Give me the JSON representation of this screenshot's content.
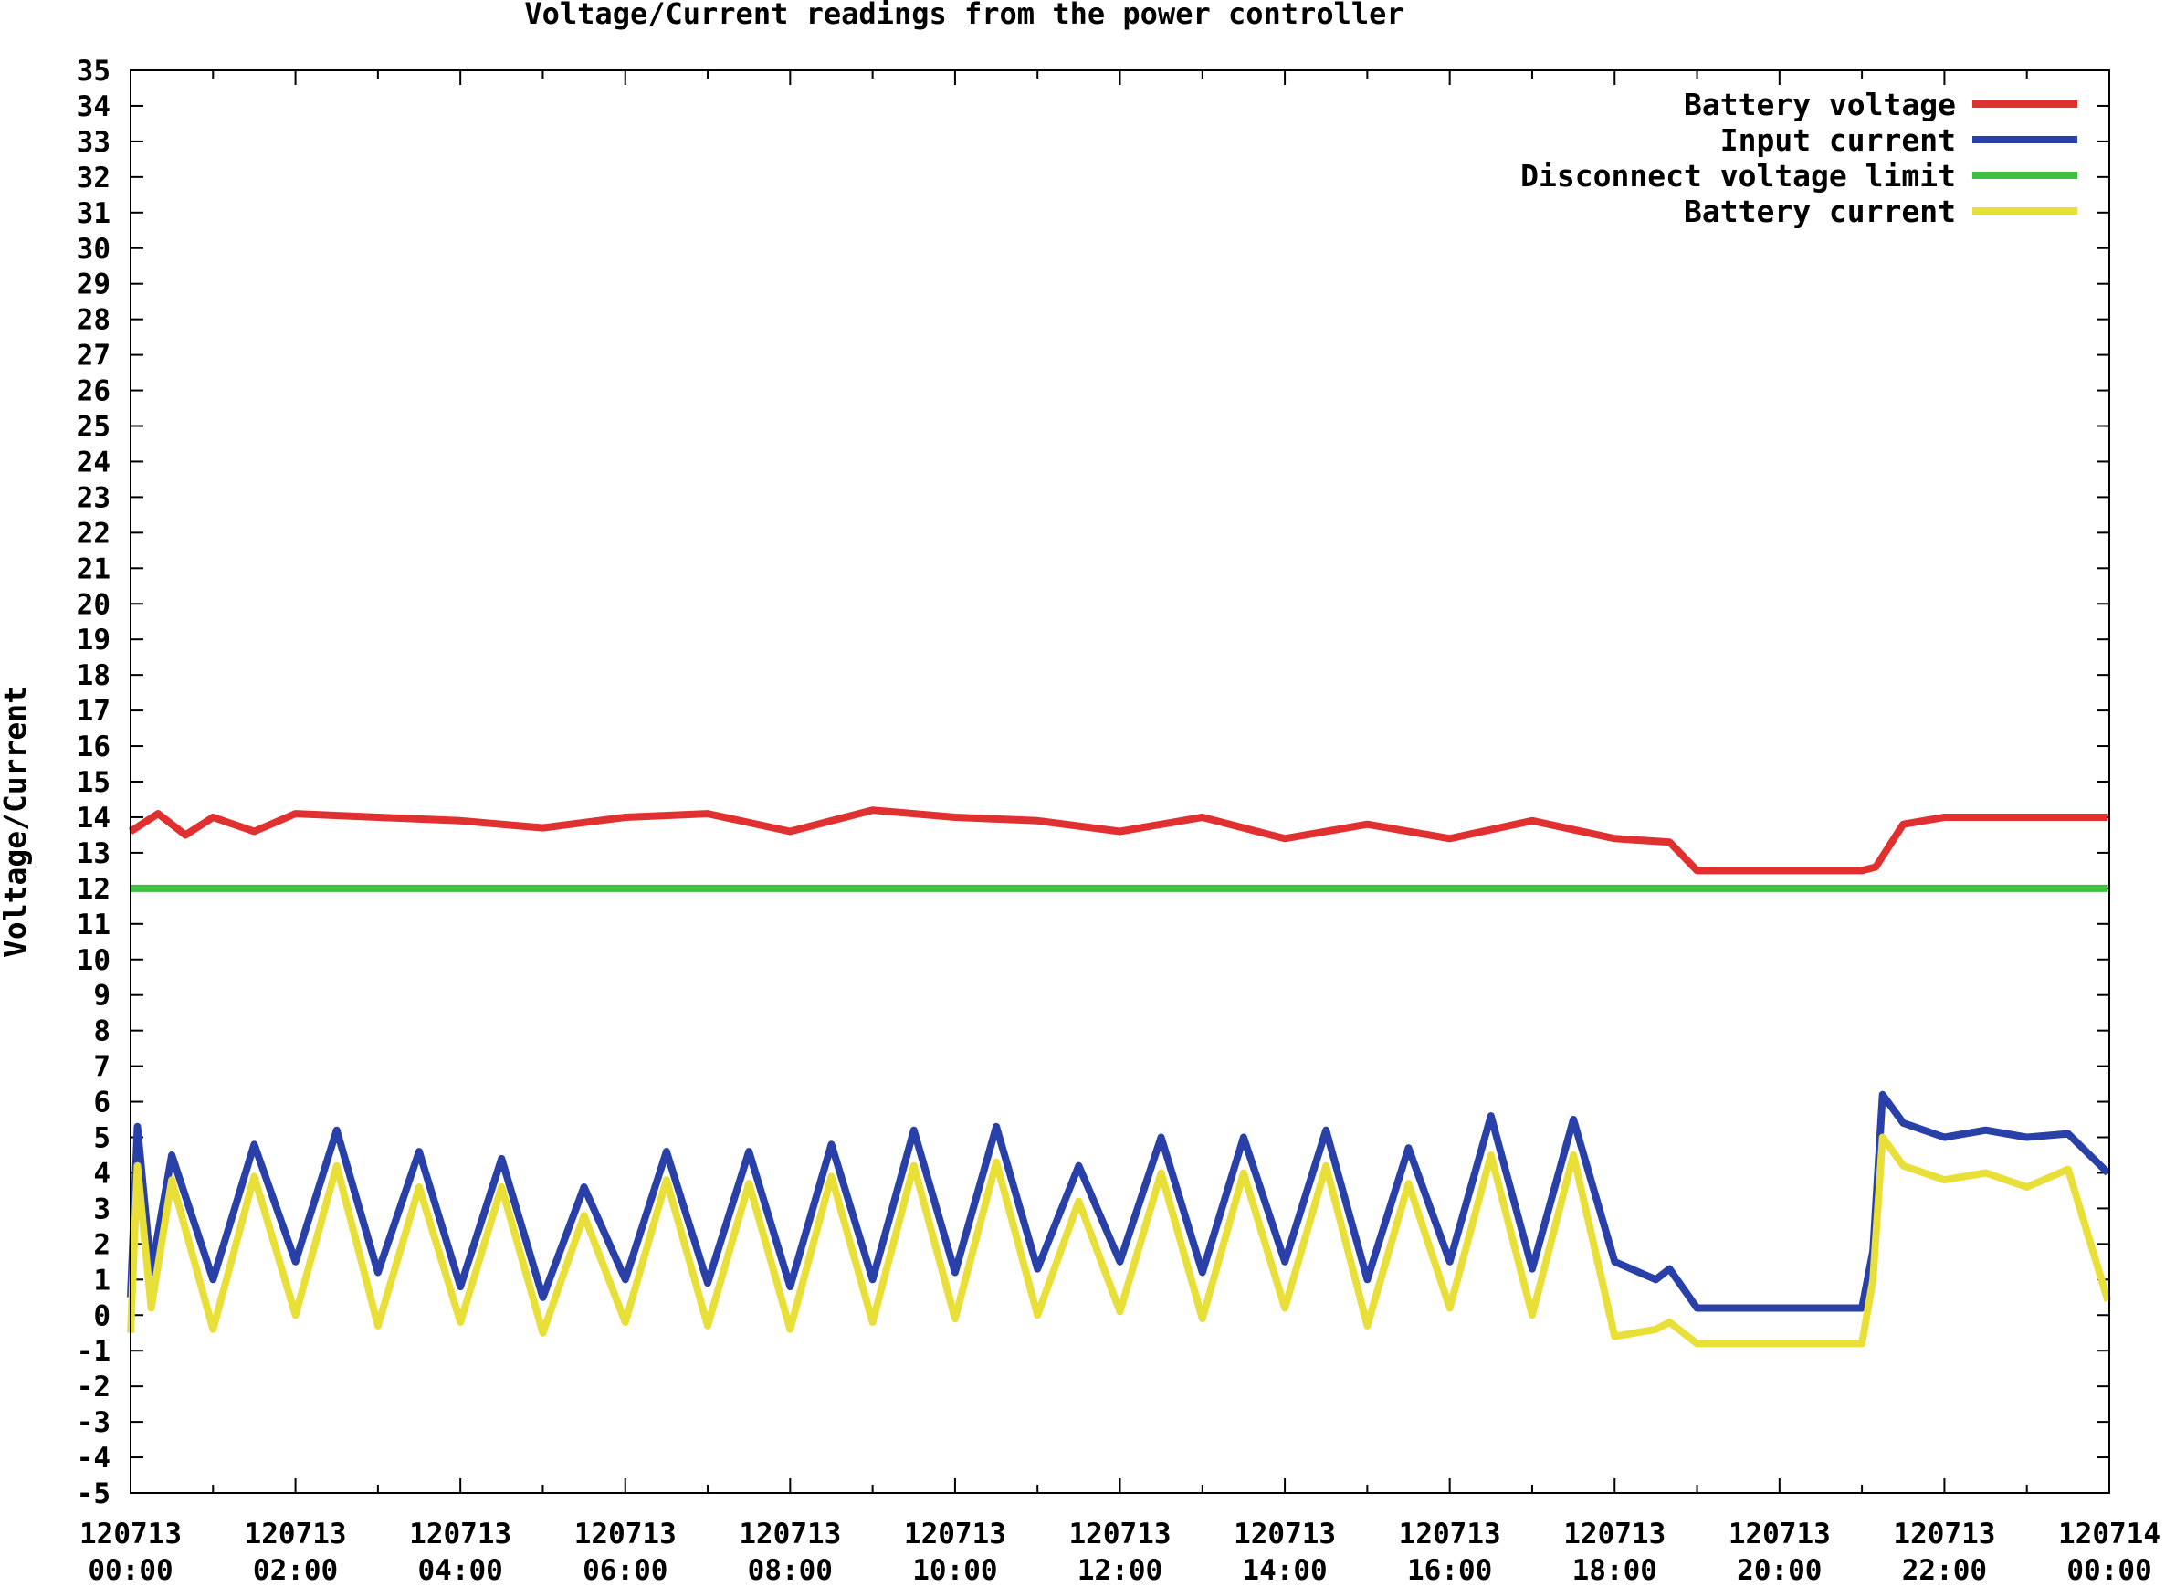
{
  "chart_data": {
    "type": "line",
    "title": "Voltage/Current readings from the power controller",
    "xlabel": "",
    "ylabel": "Voltage/Current",
    "ylim": [
      -5,
      35
    ],
    "yticks": [
      -5,
      -4,
      -3,
      -2,
      -1,
      0,
      1,
      2,
      3,
      4,
      5,
      6,
      7,
      8,
      9,
      10,
      11,
      12,
      13,
      14,
      15,
      16,
      17,
      18,
      19,
      20,
      21,
      22,
      23,
      24,
      25,
      26,
      27,
      28,
      29,
      30,
      31,
      32,
      33,
      34,
      35
    ],
    "xlim": [
      "120713 00:00",
      "120714 00:00"
    ],
    "xticks": [
      {
        "date": "120713",
        "time": "00:00"
      },
      {
        "date": "120713",
        "time": "02:00"
      },
      {
        "date": "120713",
        "time": "04:00"
      },
      {
        "date": "120713",
        "time": "06:00"
      },
      {
        "date": "120713",
        "time": "08:00"
      },
      {
        "date": "120713",
        "time": "10:00"
      },
      {
        "date": "120713",
        "time": "12:00"
      },
      {
        "date": "120713",
        "time": "14:00"
      },
      {
        "date": "120713",
        "time": "16:00"
      },
      {
        "date": "120713",
        "time": "18:00"
      },
      {
        "date": "120713",
        "time": "20:00"
      },
      {
        "date": "120713",
        "time": "22:00"
      },
      {
        "date": "120714",
        "time": "00:00"
      }
    ],
    "grid": false,
    "legend_position": "top-right",
    "series": [
      {
        "name": "Battery voltage",
        "color": "#e03030",
        "x": [
          "00:00",
          "00:20",
          "00:40",
          "01:00",
          "01:30",
          "02:00",
          "03:00",
          "04:00",
          "05:00",
          "06:00",
          "07:00",
          "08:00",
          "09:00",
          "10:00",
          "11:00",
          "12:00",
          "13:00",
          "14:00",
          "15:00",
          "16:00",
          "17:00",
          "18:00",
          "18:40",
          "19:00",
          "20:00",
          "21:00",
          "21:10",
          "21:30",
          "22:00",
          "23:00",
          "23:59"
        ],
        "y": [
          13.6,
          14.1,
          13.5,
          14.0,
          13.6,
          14.1,
          14.0,
          13.9,
          13.7,
          14.0,
          14.1,
          13.6,
          14.2,
          14.0,
          13.9,
          13.6,
          14.0,
          13.4,
          13.8,
          13.4,
          13.9,
          13.4,
          13.3,
          12.5,
          12.5,
          12.5,
          12.6,
          13.8,
          14.0,
          14.0,
          14.0
        ]
      },
      {
        "name": "Input current",
        "color": "#2840a8",
        "x": [
          "00:00",
          "00:05",
          "00:15",
          "00:30",
          "01:00",
          "01:30",
          "02:00",
          "02:30",
          "03:00",
          "03:30",
          "04:00",
          "04:30",
          "05:00",
          "05:30",
          "06:00",
          "06:30",
          "07:00",
          "07:30",
          "08:00",
          "08:30",
          "09:00",
          "09:30",
          "10:00",
          "10:30",
          "11:00",
          "11:30",
          "12:00",
          "12:30",
          "13:00",
          "13:30",
          "14:00",
          "14:30",
          "15:00",
          "15:30",
          "16:00",
          "16:30",
          "17:00",
          "17:30",
          "18:00",
          "18:30",
          "18:40",
          "19:00",
          "20:00",
          "21:00",
          "21:08",
          "21:15",
          "21:30",
          "22:00",
          "22:30",
          "23:00",
          "23:30",
          "23:59"
        ],
        "y": [
          0.5,
          5.3,
          1.2,
          4.5,
          1.0,
          4.8,
          1.5,
          5.2,
          1.2,
          4.6,
          0.8,
          4.4,
          0.5,
          3.6,
          1.0,
          4.6,
          0.9,
          4.6,
          0.8,
          4.8,
          1.0,
          5.2,
          1.2,
          5.3,
          1.3,
          4.2,
          1.5,
          5.0,
          1.2,
          5.0,
          1.5,
          5.2,
          1.0,
          4.7,
          1.5,
          5.6,
          1.3,
          5.5,
          1.5,
          1.0,
          1.3,
          0.2,
          0.2,
          0.2,
          1.8,
          6.2,
          5.4,
          5.0,
          5.2,
          5.0,
          5.1,
          4.0
        ]
      },
      {
        "name": "Disconnect voltage limit",
        "color": "#40c040",
        "x": [
          "00:00",
          "23:59"
        ],
        "y": [
          12,
          12
        ]
      },
      {
        "name": "Battery current",
        "color": "#e8e038",
        "x": [
          "00:00",
          "00:05",
          "00:15",
          "00:30",
          "01:00",
          "01:30",
          "02:00",
          "02:30",
          "03:00",
          "03:30",
          "04:00",
          "04:30",
          "05:00",
          "05:30",
          "06:00",
          "06:30",
          "07:00",
          "07:30",
          "08:00",
          "08:30",
          "09:00",
          "09:30",
          "10:00",
          "10:30",
          "11:00",
          "11:30",
          "12:00",
          "12:30",
          "13:00",
          "13:30",
          "14:00",
          "14:30",
          "15:00",
          "15:30",
          "16:00",
          "16:30",
          "17:00",
          "17:30",
          "18:00",
          "18:30",
          "18:40",
          "19:00",
          "20:00",
          "21:00",
          "21:08",
          "21:15",
          "21:30",
          "22:00",
          "22:30",
          "23:00",
          "23:30",
          "23:59"
        ],
        "y": [
          -0.5,
          4.2,
          0.2,
          3.8,
          -0.4,
          3.9,
          0.0,
          4.2,
          -0.3,
          3.6,
          -0.2,
          3.6,
          -0.5,
          2.8,
          -0.2,
          3.8,
          -0.3,
          3.7,
          -0.4,
          3.9,
          -0.2,
          4.2,
          -0.1,
          4.3,
          0.0,
          3.2,
          0.1,
          4.0,
          -0.1,
          4.0,
          0.2,
          4.2,
          -0.3,
          3.7,
          0.2,
          4.5,
          0.0,
          4.5,
          -0.6,
          -0.4,
          -0.2,
          -0.8,
          -0.8,
          -0.8,
          1.0,
          5.0,
          4.2,
          3.8,
          4.0,
          3.6,
          4.1,
          0.4
        ]
      }
    ]
  }
}
